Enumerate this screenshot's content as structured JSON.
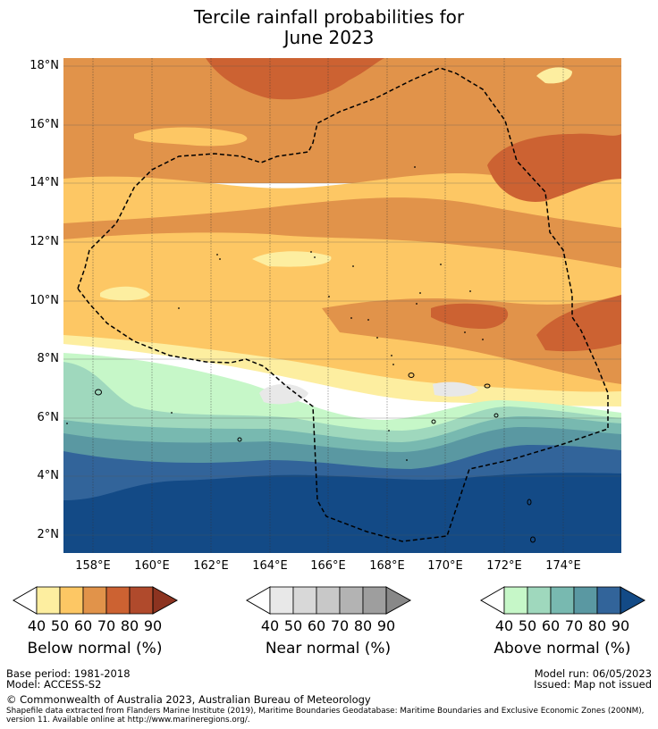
{
  "title": {
    "line1": "Tercile rainfall probabilities for",
    "line2": "June 2023"
  },
  "map": {
    "latitude_labels": [
      "18°N",
      "16°N",
      "14°N",
      "12°N",
      "10°N",
      "8°N",
      "6°N",
      "4°N",
      "2°N"
    ],
    "longitude_labels": [
      "158°E",
      "160°E",
      "162°E",
      "164°E",
      "166°E",
      "168°E",
      "170°E",
      "172°E",
      "174°E"
    ],
    "colors": {
      "below": [
        "#fdeea0",
        "#fdc764",
        "#e1934a",
        "#cc6232",
        "#b04a2c",
        "#8c3320"
      ],
      "near": [
        "#e8e8e8",
        "#d8d8d8",
        "#c8c8c8",
        "#b3b3b3",
        "#9e9e9e",
        "#888888"
      ],
      "above": [
        "#c6f7c8",
        "#9fd8bd",
        "#78b9b0",
        "#5a98a2",
        "#32649a",
        "#134a86"
      ]
    }
  },
  "legends": [
    {
      "id": "below",
      "title": "Below normal (%)",
      "ticks": [
        "40",
        "50",
        "60",
        "70",
        "80",
        "90"
      ]
    },
    {
      "id": "near",
      "title": "Near normal (%)",
      "ticks": [
        "40",
        "50",
        "60",
        "70",
        "80",
        "90"
      ]
    },
    {
      "id": "above",
      "title": "Above normal (%)",
      "ticks": [
        "40",
        "50",
        "60",
        "70",
        "80",
        "90"
      ]
    }
  ],
  "footer": {
    "base_period": "Base period: 1981-2018",
    "model": "Model: ACCESS-S2",
    "model_run": "Model run: 06/05/2023",
    "issued": "Issued: Map not issued",
    "copyright": "© Commonwealth of Australia 2023, Australian Bureau of Meteorology",
    "shapefile": "Shapefile data extracted from Flanders Marine Institute (2019), Maritime Boundaries Geodatabase: Maritime Boundaries and Exclusive Economic Zones (200NM), version 11. Available online at http://www.marineregions.org/."
  }
}
